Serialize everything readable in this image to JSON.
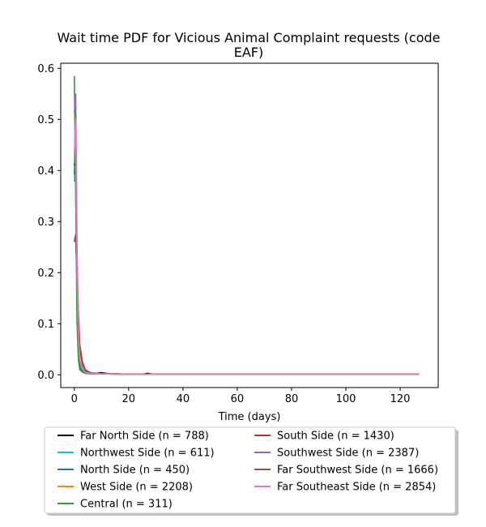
{
  "chart_data": {
    "type": "line",
    "title_line1": "Wait time PDF for Vicious Animal Complaint  requests (code",
    "title_line2": "EAF)",
    "xlabel": "Time (days)",
    "ylabel": "",
    "xlim": [
      -5,
      134
    ],
    "ylim": [
      -0.025,
      0.61
    ],
    "xticks": [
      {
        "value": 0,
        "label": "0"
      },
      {
        "value": 20,
        "label": "20"
      },
      {
        "value": 40,
        "label": "40"
      },
      {
        "value": 60,
        "label": "60"
      },
      {
        "value": 80,
        "label": "80"
      },
      {
        "value": 100,
        "label": "100"
      },
      {
        "value": 120,
        "label": "120"
      }
    ],
    "yticks": [
      {
        "value": 0.0,
        "label": "0.0"
      },
      {
        "value": 0.1,
        "label": "0.1"
      },
      {
        "value": 0.2,
        "label": "0.2"
      },
      {
        "value": 0.3,
        "label": "0.3"
      },
      {
        "value": 0.4,
        "label": "0.4"
      },
      {
        "value": 0.5,
        "label": "0.5"
      },
      {
        "value": 0.6,
        "label": "0.6"
      }
    ],
    "grid": false,
    "legend_position": "below-plot",
    "series": [
      {
        "name": "Far North Side (n = 788)",
        "color": "#000000",
        "points": [
          [
            0,
            0.41
          ],
          [
            0.5,
            0.45
          ],
          [
            1,
            0.2
          ],
          [
            1.5,
            0.07
          ],
          [
            2,
            0.03
          ],
          [
            3,
            0.012
          ],
          [
            4,
            0.006
          ],
          [
            6,
            0.004
          ],
          [
            8,
            0.003
          ],
          [
            10,
            0.004
          ],
          [
            13,
            0.002
          ],
          [
            16,
            0.002
          ],
          [
            20,
            0.001
          ],
          [
            25,
            0.001
          ],
          [
            27,
            0.003
          ],
          [
            29,
            0.001
          ],
          [
            40,
            0.001
          ],
          [
            57,
            0.001
          ],
          [
            80,
            0.001
          ],
          [
            100,
            0.001
          ],
          [
            127,
            0.001
          ]
        ]
      },
      {
        "name": "Northwest Side (n = 611)",
        "color": "#17becf",
        "points": [
          [
            0,
            0.378
          ],
          [
            0.5,
            0.44
          ],
          [
            1,
            0.18
          ],
          [
            1.5,
            0.05
          ],
          [
            2,
            0.02
          ],
          [
            3,
            0.008
          ],
          [
            4,
            0.004
          ],
          [
            6,
            0.003
          ],
          [
            10,
            0.002
          ],
          [
            20,
            0.001
          ],
          [
            40,
            0.001
          ],
          [
            80,
            0.001
          ],
          [
            127,
            0.001
          ]
        ]
      },
      {
        "name": "North Side (n = 450)",
        "color": "#1f77b4",
        "points": [
          [
            0,
            0.392
          ],
          [
            0.5,
            0.49
          ],
          [
            1,
            0.16
          ],
          [
            1.5,
            0.04
          ],
          [
            2,
            0.015
          ],
          [
            3,
            0.006
          ],
          [
            4,
            0.003
          ],
          [
            6,
            0.002
          ],
          [
            10,
            0.002
          ],
          [
            20,
            0.001
          ],
          [
            40,
            0.001
          ],
          [
            80,
            0.001
          ],
          [
            127,
            0.001
          ]
        ]
      },
      {
        "name": "West Side (n = 2208)",
        "color": "#ff7f0e",
        "points": [
          [
            0,
            0.415
          ],
          [
            0.5,
            0.42
          ],
          [
            1,
            0.19
          ],
          [
            1.5,
            0.1
          ],
          [
            2,
            0.05
          ],
          [
            3,
            0.02
          ],
          [
            4,
            0.009
          ],
          [
            6,
            0.004
          ],
          [
            10,
            0.002
          ],
          [
            20,
            0.001
          ],
          [
            40,
            0.001
          ],
          [
            80,
            0.001
          ],
          [
            127,
            0.001
          ]
        ]
      },
      {
        "name": "Central (n = 311)",
        "color": "#2ca02c",
        "points": [
          [
            0,
            0.585
          ],
          [
            0.5,
            0.35
          ],
          [
            1,
            0.1
          ],
          [
            1.5,
            0.03
          ],
          [
            2,
            0.01
          ],
          [
            3,
            0.005
          ],
          [
            4,
            0.003
          ],
          [
            6,
            0.002
          ],
          [
            10,
            0.002
          ],
          [
            20,
            0.001
          ],
          [
            40,
            0.001
          ],
          [
            80,
            0.001
          ],
          [
            127,
            0.001
          ]
        ]
      },
      {
        "name": "South Side (n = 1430)",
        "color": "#d62728",
        "points": [
          [
            0,
            0.265
          ],
          [
            0.5,
            0.27
          ],
          [
            1,
            0.2
          ],
          [
            1.5,
            0.12
          ],
          [
            2,
            0.06
          ],
          [
            3,
            0.025
          ],
          [
            4,
            0.01
          ],
          [
            6,
            0.004
          ],
          [
            10,
            0.002
          ],
          [
            20,
            0.001
          ],
          [
            40,
            0.001
          ],
          [
            80,
            0.001
          ],
          [
            127,
            0.001
          ]
        ]
      },
      {
        "name": "Southwest Side (n = 2387)",
        "color": "#9467bd",
        "points": [
          [
            0,
            0.513
          ],
          [
            0.5,
            0.55
          ],
          [
            1,
            0.25
          ],
          [
            1.5,
            0.09
          ],
          [
            2,
            0.03
          ],
          [
            3,
            0.01
          ],
          [
            4,
            0.005
          ],
          [
            6,
            0.003
          ],
          [
            10,
            0.002
          ],
          [
            20,
            0.001
          ],
          [
            40,
            0.001
          ],
          [
            80,
            0.001
          ],
          [
            127,
            0.001
          ]
        ]
      },
      {
        "name": "Far Southwest Side (n = 1666)",
        "color": "#8c564b",
        "points": [
          [
            0,
            0.26
          ],
          [
            0.5,
            0.275
          ],
          [
            1,
            0.19
          ],
          [
            1.5,
            0.1
          ],
          [
            2,
            0.05
          ],
          [
            3,
            0.02
          ],
          [
            4,
            0.008
          ],
          [
            6,
            0.004
          ],
          [
            10,
            0.002
          ],
          [
            20,
            0.001
          ],
          [
            40,
            0.001
          ],
          [
            80,
            0.001
          ],
          [
            127,
            0.001
          ]
        ]
      },
      {
        "name": "Far Southeast Side (n = 2854)",
        "color": "#e377c2",
        "points": [
          [
            0,
            0.43
          ],
          [
            0.5,
            0.5
          ],
          [
            1,
            0.2
          ],
          [
            1.5,
            0.08
          ],
          [
            2,
            0.03
          ],
          [
            3,
            0.012
          ],
          [
            4,
            0.005
          ],
          [
            6,
            0.003
          ],
          [
            10,
            0.002
          ],
          [
            20,
            0.001
          ],
          [
            40,
            0.001
          ],
          [
            80,
            0.001
          ],
          [
            127,
            0.001
          ]
        ]
      }
    ]
  }
}
